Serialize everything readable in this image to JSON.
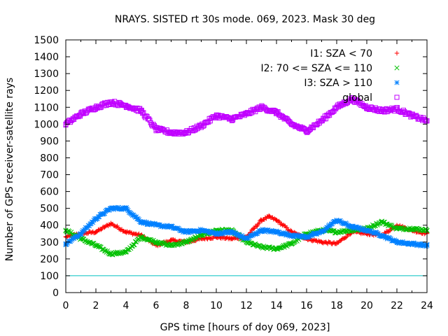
{
  "chart_data": {
    "type": "scatter",
    "title": "NRAYS. SISTED rt 30s mode. 069, 2023. Mask 30 deg",
    "xlabel": "GPS time [hours of doy 069, 2023]",
    "ylabel": "Number of GPS receiver-satellite rays",
    "xlim": [
      0,
      24
    ],
    "ylim": [
      0,
      1500
    ],
    "xticks": [
      "0",
      "2",
      "4",
      "6",
      "8",
      "10",
      "12",
      "14",
      "16",
      "18",
      "20",
      "22",
      "24"
    ],
    "yticks": [
      "0",
      "100",
      "200",
      "300",
      "400",
      "500",
      "600",
      "700",
      "800",
      "900",
      "1000",
      "1100",
      "1200",
      "1300",
      "1400",
      "1500"
    ],
    "threshold_line": {
      "y": 100,
      "color": "#00c0c0"
    },
    "legend_position": "top-right",
    "series": [
      {
        "name": "I1: SZA < 70",
        "marker": "plus",
        "color": "#ff0000",
        "x": [
          0,
          1,
          2,
          3,
          4,
          5,
          6,
          7,
          8,
          9,
          10,
          11,
          12,
          13,
          13.5,
          14,
          15,
          16,
          17,
          18,
          19,
          20,
          21,
          22,
          23,
          24
        ],
        "y": [
          330,
          350,
          360,
          410,
          360,
          340,
          280,
          310,
          300,
          320,
          330,
          320,
          330,
          430,
          450,
          430,
          360,
          320,
          300,
          290,
          360,
          350,
          340,
          400,
          370,
          350
        ]
      },
      {
        "name": "I2: 70 <= SZA <= 110",
        "marker": "cross",
        "color": "#00c000",
        "x": [
          0,
          1,
          2,
          3,
          4,
          5,
          6,
          7,
          8,
          9,
          10,
          11,
          12,
          13,
          14,
          15,
          16,
          17,
          18,
          19,
          20,
          21,
          22,
          23,
          24
        ],
        "y": [
          370,
          320,
          280,
          230,
          240,
          330,
          300,
          280,
          300,
          340,
          370,
          370,
          300,
          270,
          260,
          290,
          350,
          370,
          360,
          370,
          380,
          420,
          380,
          380,
          370
        ]
      },
      {
        "name": "I3: SZA > 110",
        "marker": "star",
        "color": "#0080ff",
        "x": [
          0,
          1,
          2,
          3,
          4,
          5,
          6,
          7,
          8,
          9,
          10,
          11,
          12,
          13,
          14,
          15,
          16,
          17,
          18,
          19,
          20,
          21,
          22,
          23,
          24
        ],
        "y": [
          290,
          350,
          440,
          500,
          500,
          420,
          400,
          390,
          360,
          370,
          350,
          360,
          320,
          370,
          360,
          340,
          330,
          360,
          430,
          390,
          370,
          340,
          300,
          290,
          280
        ]
      },
      {
        "name": "global",
        "marker": "square",
        "color": "#c000ff",
        "x": [
          0,
          1,
          2,
          3,
          4,
          5,
          6,
          7,
          8,
          9,
          10,
          11,
          12,
          13,
          14,
          15,
          16,
          17,
          18,
          19,
          20,
          21,
          22,
          23,
          24
        ],
        "y": [
          1000,
          1060,
          1100,
          1130,
          1110,
          1080,
          970,
          950,
          950,
          990,
          1050,
          1030,
          1060,
          1100,
          1070,
          1000,
          960,
          1020,
          1100,
          1150,
          1100,
          1080,
          1090,
          1050,
          1020
        ]
      }
    ]
  }
}
